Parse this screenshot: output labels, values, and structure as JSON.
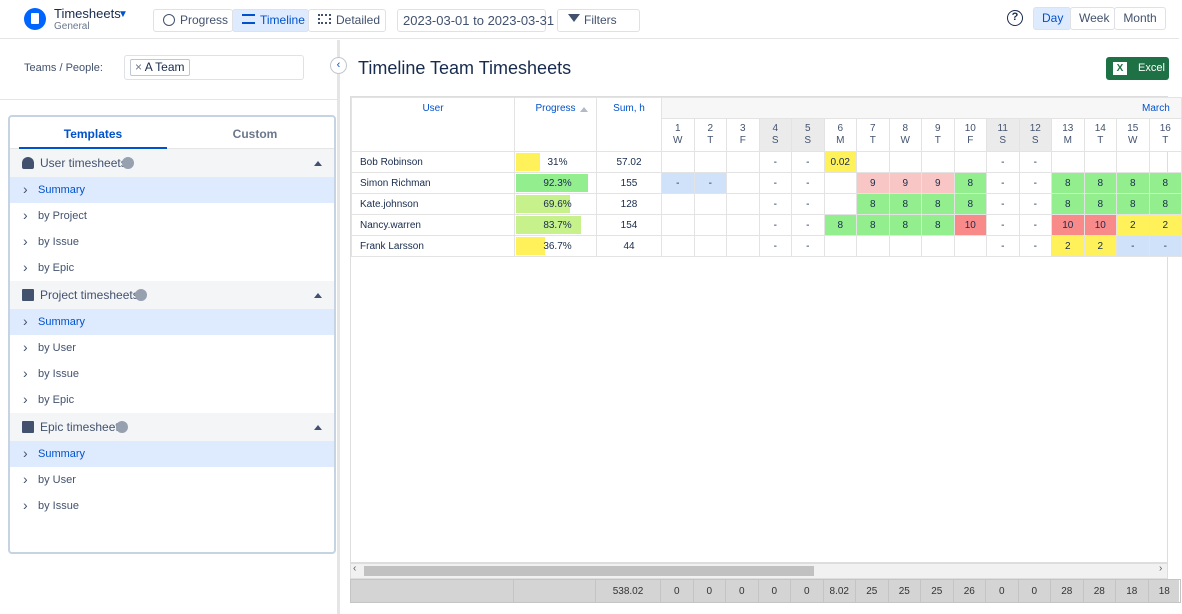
{
  "header": {
    "app_title": "Timesheets",
    "app_subtitle": "General",
    "views": [
      "Progress",
      "Timeline",
      "Detailed"
    ],
    "date_range": "2023-03-01 to 2023-03-31",
    "filters": "Filters",
    "zoom": [
      "Day",
      "Week",
      "Month"
    ]
  },
  "sidebar": {
    "teams_label": "Teams / People:",
    "team_tag": "A Team",
    "tabs": [
      "Templates",
      "Custom"
    ],
    "groups": [
      {
        "title": "User timesheets",
        "items": [
          "Summary",
          "by Project",
          "by Issue",
          "by Epic"
        ]
      },
      {
        "title": "Project timesheets",
        "items": [
          "Summary",
          "by User",
          "by Issue",
          "by Epic"
        ]
      },
      {
        "title": "Epic timesheets",
        "items": [
          "Summary",
          "by User",
          "by Issue"
        ]
      }
    ]
  },
  "main": {
    "title": "Timeline Team Timesheets",
    "export": "Excel",
    "table": {
      "columns": [
        "User",
        "Progress",
        "Sum, h"
      ],
      "month": "March",
      "days": [
        {
          "day": 1,
          "weekday": "W",
          "weekend": false
        },
        {
          "day": 2,
          "weekday": "T",
          "weekend": false
        },
        {
          "day": 3,
          "weekday": "F",
          "weekend": false
        },
        {
          "day": 4,
          "weekday": "S",
          "weekend": true
        },
        {
          "day": 5,
          "weekday": "S",
          "weekend": true
        },
        {
          "day": 6,
          "weekday": "M",
          "weekend": false
        },
        {
          "day": 7,
          "weekday": "T",
          "weekend": false
        },
        {
          "day": 8,
          "weekday": "W",
          "weekend": false
        },
        {
          "day": 9,
          "weekday": "T",
          "weekend": false
        },
        {
          "day": 10,
          "weekday": "F",
          "weekend": false
        },
        {
          "day": 11,
          "weekday": "S",
          "weekend": true
        },
        {
          "day": 12,
          "weekday": "S",
          "weekend": true
        },
        {
          "day": 13,
          "weekday": "M",
          "weekend": false
        },
        {
          "day": 14,
          "weekday": "T",
          "weekend": false
        },
        {
          "day": 15,
          "weekday": "W",
          "weekend": false
        },
        {
          "day": 16,
          "weekday": "T",
          "weekend": false
        }
      ],
      "rows": [
        {
          "user": "Bob Robinson",
          "progress": {
            "value": 31,
            "label": "31%"
          },
          "progress_color": "#fff159",
          "sum": 57.02,
          "cells": [
            null,
            null,
            null,
            "-",
            "-",
            0.02,
            null,
            null,
            null,
            null,
            "-",
            "-",
            null,
            null,
            null,
            null
          ],
          "cell_colors": [
            null,
            null,
            null,
            null,
            null,
            "#fff159",
            null,
            null,
            null,
            null,
            null,
            null,
            null,
            null,
            null,
            null
          ]
        },
        {
          "user": "Simon Richman",
          "progress": {
            "value": 92.3,
            "label": "92.3%"
          },
          "progress_color": "#93ef8e",
          "sum": 155,
          "cells": [
            "-",
            "-",
            null,
            "-",
            "-",
            null,
            9,
            9,
            9,
            8,
            "-",
            "-",
            8,
            8,
            8,
            8
          ],
          "cell_colors": [
            "#cfe2fa",
            "#cfe2fa",
            null,
            null,
            null,
            null,
            "#f9c6c6",
            "#f9c6c6",
            "#f9c6c6",
            "#93ef8e",
            null,
            null,
            "#93ef8e",
            "#93ef8e",
            "#93ef8e",
            "#93ef8e"
          ]
        },
        {
          "user": "Kate.johnson",
          "progress": {
            "value": 69.6,
            "label": "69.6%"
          },
          "progress_color": "#c6f18b",
          "sum": 128,
          "cells": [
            null,
            null,
            null,
            "-",
            "-",
            null,
            8,
            8,
            8,
            8,
            "-",
            "-",
            8,
            8,
            8,
            8
          ],
          "cell_colors": [
            null,
            null,
            null,
            null,
            null,
            null,
            "#93ef8e",
            "#93ef8e",
            "#93ef8e",
            "#93ef8e",
            null,
            null,
            "#93ef8e",
            "#93ef8e",
            "#93ef8e",
            "#93ef8e"
          ]
        },
        {
          "user": "Nancy.warren",
          "progress": {
            "value": 83.7,
            "label": "83.7%"
          },
          "progress_color": "#c6f18b",
          "sum": 154,
          "cells": [
            null,
            null,
            null,
            "-",
            "-",
            8,
            8,
            8,
            8,
            10,
            "-",
            "-",
            10,
            10,
            2,
            2
          ],
          "cell_colors": [
            null,
            null,
            null,
            null,
            null,
            "#93ef8e",
            "#93ef8e",
            "#93ef8e",
            "#93ef8e",
            "#f98a8a",
            null,
            null,
            "#f98a8a",
            "#f98a8a",
            "#fff159",
            "#fff159"
          ]
        },
        {
          "user": "Frank Larsson",
          "progress": {
            "value": 36.7,
            "label": "36.7%"
          },
          "progress_color": "#fff159",
          "sum": 44,
          "cells": [
            null,
            null,
            null,
            "-",
            "-",
            null,
            null,
            null,
            null,
            null,
            "-",
            "-",
            2,
            2,
            "-",
            "-"
          ],
          "cell_colors": [
            null,
            null,
            null,
            null,
            null,
            null,
            null,
            null,
            null,
            null,
            null,
            null,
            "#fff159",
            "#fff159",
            "#cfe2fa",
            "#cfe2fa"
          ]
        }
      ],
      "totals": {
        "sum": 538.02,
        "days": [
          0,
          0,
          0,
          0,
          0,
          8.02,
          25,
          25,
          25,
          26,
          0,
          0,
          28,
          28,
          18,
          18
        ]
      }
    }
  }
}
